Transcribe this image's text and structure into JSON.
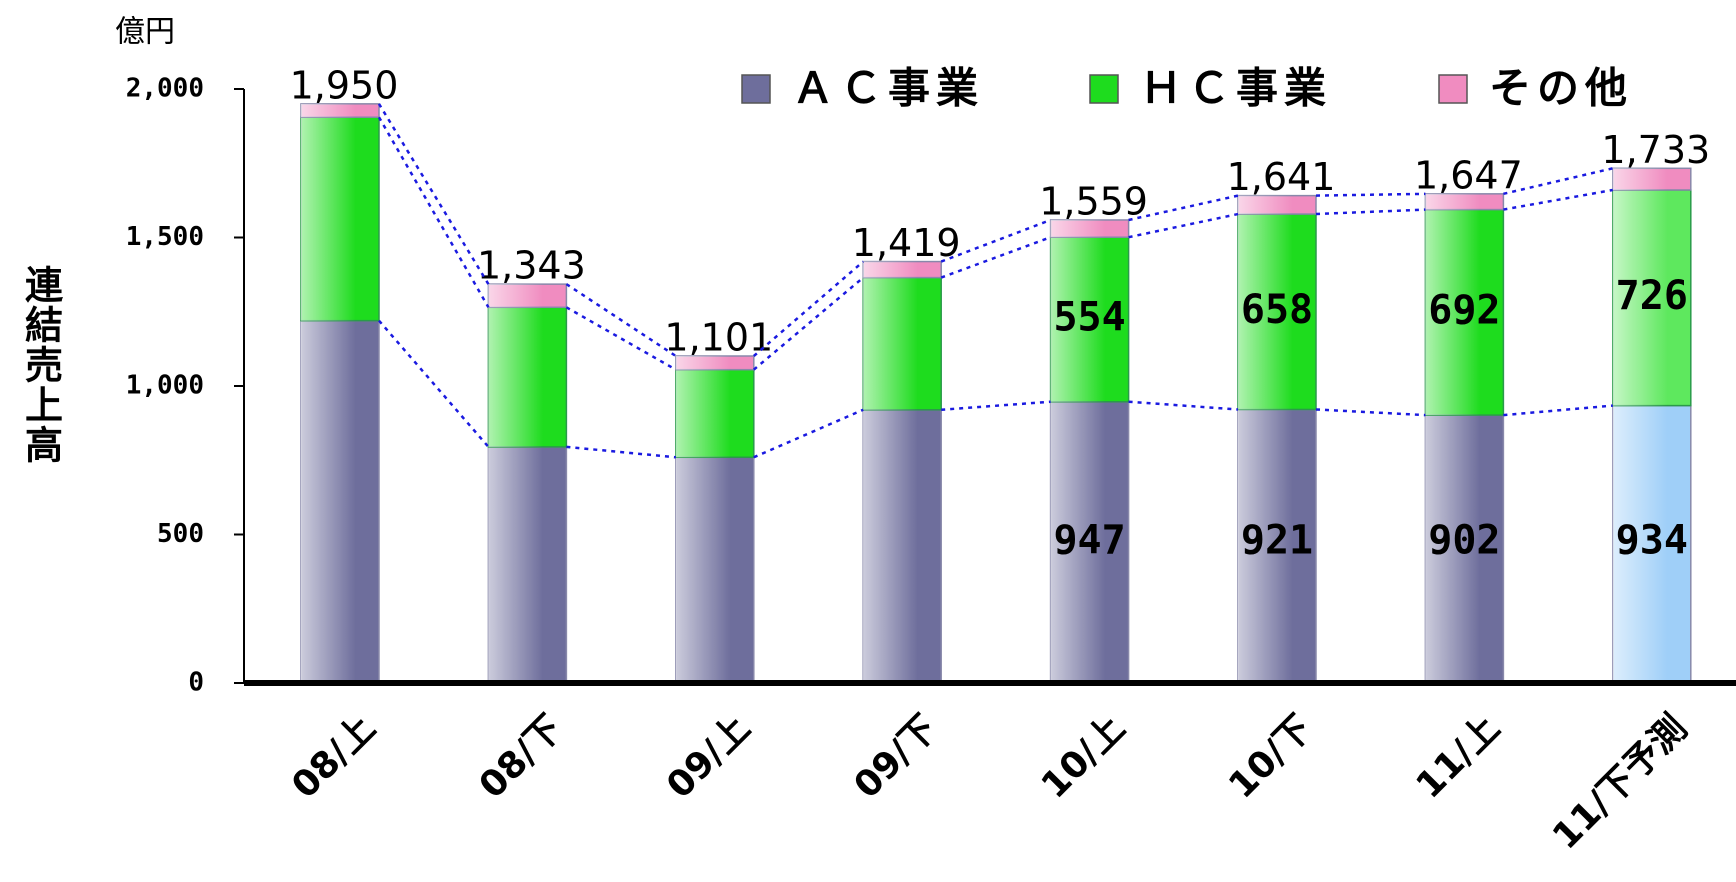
{
  "chart_data": {
    "type": "stacked_bar",
    "unit_label": "億円",
    "y_axis_label": "連結売上高",
    "categories": [
      "08/上",
      "08/下",
      "09/上",
      "09/下",
      "10/上",
      "10/下",
      "11/上",
      "11/下予測"
    ],
    "series": [
      {
        "name": "ＡＣ事業",
        "color": "#6e6e9c",
        "forecast_color": "#9fcff8",
        "values": [
          1220,
          795,
          760,
          920,
          947,
          921,
          902,
          934
        ],
        "value_labels": [
          null,
          null,
          null,
          null,
          "947",
          "921",
          "902",
          "934"
        ]
      },
      {
        "name": "ＨＣ事業",
        "color": "#1edc1e",
        "forecast_color": "#5ee85e",
        "values": [
          685,
          470,
          295,
          445,
          554,
          658,
          692,
          726
        ],
        "value_labels": [
          null,
          null,
          null,
          null,
          "554",
          "658",
          "692",
          "726"
        ]
      },
      {
        "name": "その他",
        "color": "#f08cc0",
        "forecast_color": "#f08cc0",
        "values": [
          45,
          78,
          46,
          54,
          58,
          62,
          53,
          73
        ]
      }
    ],
    "totals": {
      "values": [
        1950,
        1343,
        1101,
        1419,
        1559,
        1641,
        1647,
        1733
      ],
      "value_labels": [
        "1,950",
        "1,343",
        "1,101",
        "1,419",
        "1,559",
        "1,641",
        "1,647",
        "1,733"
      ]
    },
    "ylim": [
      0,
      2000
    ],
    "yticks": [
      0,
      500,
      {
        "value": 1000,
        "label": "1,000"
      },
      {
        "value": 1500,
        "label": "1,500"
      },
      {
        "value": 2000,
        "label": "2,000"
      }
    ],
    "legend": "top-right",
    "connector_color": "#1a1ae0"
  }
}
